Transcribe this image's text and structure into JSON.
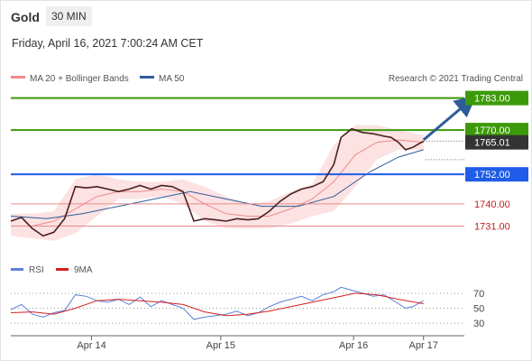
{
  "header": {
    "instrument": "Gold",
    "timeframe": "30 MIN",
    "datetime": "Friday, April 16, 2021 7:00:24 AM CET"
  },
  "chart_data": [
    {
      "type": "candlestick",
      "title": "Gold",
      "legend": [
        {
          "name": "MA 20 + Bollinger Bands",
          "color": "#f08a8a"
        },
        {
          "name": "MA 50",
          "color": "#2e5c99"
        }
      ],
      "credit": "Research © 2021 Trading Central",
      "x_ticks": [
        "Apr 14",
        "Apr 15",
        "Apr 16",
        "Apr 17"
      ],
      "ylim": [
        1722,
        1788
      ],
      "last_price": "1765.01",
      "levels": [
        {
          "value": 1783.0,
          "label": "1783.00",
          "kind": "target",
          "color": "#3c9a0a"
        },
        {
          "value": 1770.0,
          "label": "1770.00",
          "kind": "resistance",
          "color": "#3c9a0a"
        },
        {
          "value": 1752.0,
          "label": "1752.00",
          "kind": "pivot",
          "color": "#1f5de8"
        },
        {
          "value": 1740.0,
          "label": "1740.00",
          "kind": "support",
          "color": "#c02020"
        },
        {
          "value": 1731.0,
          "label": "1731.00",
          "kind": "support",
          "color": "#c02020"
        }
      ],
      "price_path": [
        [
          0,
          1733
        ],
        [
          3,
          1734.5
        ],
        [
          6,
          1730
        ],
        [
          9,
          1727
        ],
        [
          12,
          1728.5
        ],
        [
          15,
          1734
        ],
        [
          18,
          1747
        ],
        [
          21,
          1746.5
        ],
        [
          24,
          1747
        ],
        [
          27,
          1746
        ],
        [
          30,
          1745
        ],
        [
          33,
          1746
        ],
        [
          36,
          1747.5
        ],
        [
          39,
          1746
        ],
        [
          42,
          1747.5
        ],
        [
          45,
          1747
        ],
        [
          48,
          1745
        ],
        [
          51,
          1733
        ],
        [
          54,
          1734
        ],
        [
          57,
          1733.5
        ],
        [
          60,
          1733
        ],
        [
          63,
          1734
        ],
        [
          66,
          1733.5
        ],
        [
          69,
          1734
        ],
        [
          72,
          1737
        ],
        [
          75,
          1741
        ],
        [
          78,
          1744
        ],
        [
          81,
          1746
        ],
        [
          84,
          1747
        ],
        [
          87,
          1749
        ],
        [
          90,
          1756
        ],
        [
          92,
          1767
        ],
        [
          95,
          1770.5
        ],
        [
          98,
          1769
        ],
        [
          101,
          1768.5
        ],
        [
          104,
          1767.5
        ],
        [
          106,
          1767
        ],
        [
          108,
          1765
        ],
        [
          110,
          1762
        ],
        [
          112,
          1763
        ],
        [
          115,
          1765.5
        ]
      ],
      "ma20_path": [
        [
          0,
          1731
        ],
        [
          6,
          1731
        ],
        [
          12,
          1733
        ],
        [
          18,
          1738
        ],
        [
          24,
          1743
        ],
        [
          30,
          1745
        ],
        [
          36,
          1745
        ],
        [
          42,
          1746
        ],
        [
          48,
          1745
        ],
        [
          54,
          1740
        ],
        [
          60,
          1736
        ],
        [
          66,
          1735
        ],
        [
          72,
          1735
        ],
        [
          78,
          1738
        ],
        [
          84,
          1742
        ],
        [
          90,
          1749
        ],
        [
          96,
          1760
        ],
        [
          102,
          1765
        ],
        [
          108,
          1766
        ],
        [
          115,
          1765
        ]
      ],
      "bb_upper_path": [
        [
          0,
          1736
        ],
        [
          6,
          1736
        ],
        [
          12,
          1737
        ],
        [
          18,
          1750
        ],
        [
          24,
          1752
        ],
        [
          30,
          1750
        ],
        [
          36,
          1749
        ],
        [
          42,
          1749
        ],
        [
          48,
          1750
        ],
        [
          54,
          1747
        ],
        [
          60,
          1743
        ],
        [
          66,
          1740
        ],
        [
          72,
          1741
        ],
        [
          78,
          1745
        ],
        [
          84,
          1748
        ],
        [
          90,
          1764
        ],
        [
          96,
          1772
        ],
        [
          102,
          1772
        ],
        [
          108,
          1770
        ],
        [
          115,
          1768
        ]
      ],
      "bb_lower_path": [
        [
          0,
          1727
        ],
        [
          6,
          1726
        ],
        [
          12,
          1725
        ],
        [
          18,
          1728
        ],
        [
          24,
          1735
        ],
        [
          30,
          1742
        ],
        [
          36,
          1742
        ],
        [
          42,
          1743
        ],
        [
          48,
          1740
        ],
        [
          54,
          1733
        ],
        [
          60,
          1730
        ],
        [
          66,
          1730
        ],
        [
          72,
          1730
        ],
        [
          78,
          1732
        ],
        [
          84,
          1735
        ],
        [
          90,
          1737
        ],
        [
          96,
          1747
        ],
        [
          102,
          1758
        ],
        [
          108,
          1762
        ],
        [
          115,
          1762
        ]
      ],
      "ma50_path": [
        [
          0,
          1735
        ],
        [
          10,
          1734
        ],
        [
          20,
          1736
        ],
        [
          30,
          1739
        ],
        [
          40,
          1742
        ],
        [
          50,
          1745
        ],
        [
          60,
          1742
        ],
        [
          70,
          1739
        ],
        [
          80,
          1739
        ],
        [
          90,
          1743
        ],
        [
          100,
          1753
        ],
        [
          108,
          1759
        ],
        [
          115,
          1762
        ]
      ],
      "forecast_arrow": {
        "from": [
          115,
          1766
        ],
        "to": [
          128,
          1782
        ]
      }
    },
    {
      "type": "line",
      "title": "RSI",
      "legend": [
        {
          "name": "RSI",
          "color": "#5a7fd6"
        },
        {
          "name": "9MA",
          "color": "#d62020"
        }
      ],
      "ylim": [
        18,
        82
      ],
      "y_ticks": [
        70,
        50,
        30
      ],
      "series": [
        {
          "name": "RSI",
          "color": "#5a7fd6",
          "points": [
            [
              0,
              48
            ],
            [
              3,
              55
            ],
            [
              6,
              42
            ],
            [
              9,
              38
            ],
            [
              12,
              44
            ],
            [
              15,
              47
            ],
            [
              18,
              68
            ],
            [
              21,
              66
            ],
            [
              24,
              60
            ],
            [
              27,
              58
            ],
            [
              30,
              62
            ],
            [
              33,
              55
            ],
            [
              36,
              65
            ],
            [
              39,
              52
            ],
            [
              42,
              60
            ],
            [
              45,
              55
            ],
            [
              48,
              50
            ],
            [
              51,
              35
            ],
            [
              54,
              38
            ],
            [
              57,
              40
            ],
            [
              60,
              42
            ],
            [
              63,
              46
            ],
            [
              66,
              40
            ],
            [
              69,
              44
            ],
            [
              72,
              52
            ],
            [
              75,
              58
            ],
            [
              78,
              62
            ],
            [
              81,
              66
            ],
            [
              84,
              60
            ],
            [
              87,
              68
            ],
            [
              90,
              72
            ],
            [
              92,
              78
            ],
            [
              95,
              74
            ],
            [
              98,
              70
            ],
            [
              101,
              66
            ],
            [
              104,
              68
            ],
            [
              106,
              62
            ],
            [
              108,
              56
            ],
            [
              110,
              50
            ],
            [
              112,
              52
            ],
            [
              115,
              60
            ]
          ]
        },
        {
          "name": "9MA",
          "color": "#d62020",
          "points": [
            [
              0,
              44
            ],
            [
              6,
              45
            ],
            [
              12,
              42
            ],
            [
              18,
              50
            ],
            [
              24,
              60
            ],
            [
              30,
              62
            ],
            [
              36,
              60
            ],
            [
              42,
              58
            ],
            [
              48,
              55
            ],
            [
              54,
              45
            ],
            [
              60,
              40
            ],
            [
              66,
              42
            ],
            [
              72,
              46
            ],
            [
              78,
              52
            ],
            [
              84,
              58
            ],
            [
              90,
              64
            ],
            [
              96,
              70
            ],
            [
              102,
              68
            ],
            [
              108,
              62
            ],
            [
              115,
              56
            ]
          ]
        }
      ]
    }
  ]
}
